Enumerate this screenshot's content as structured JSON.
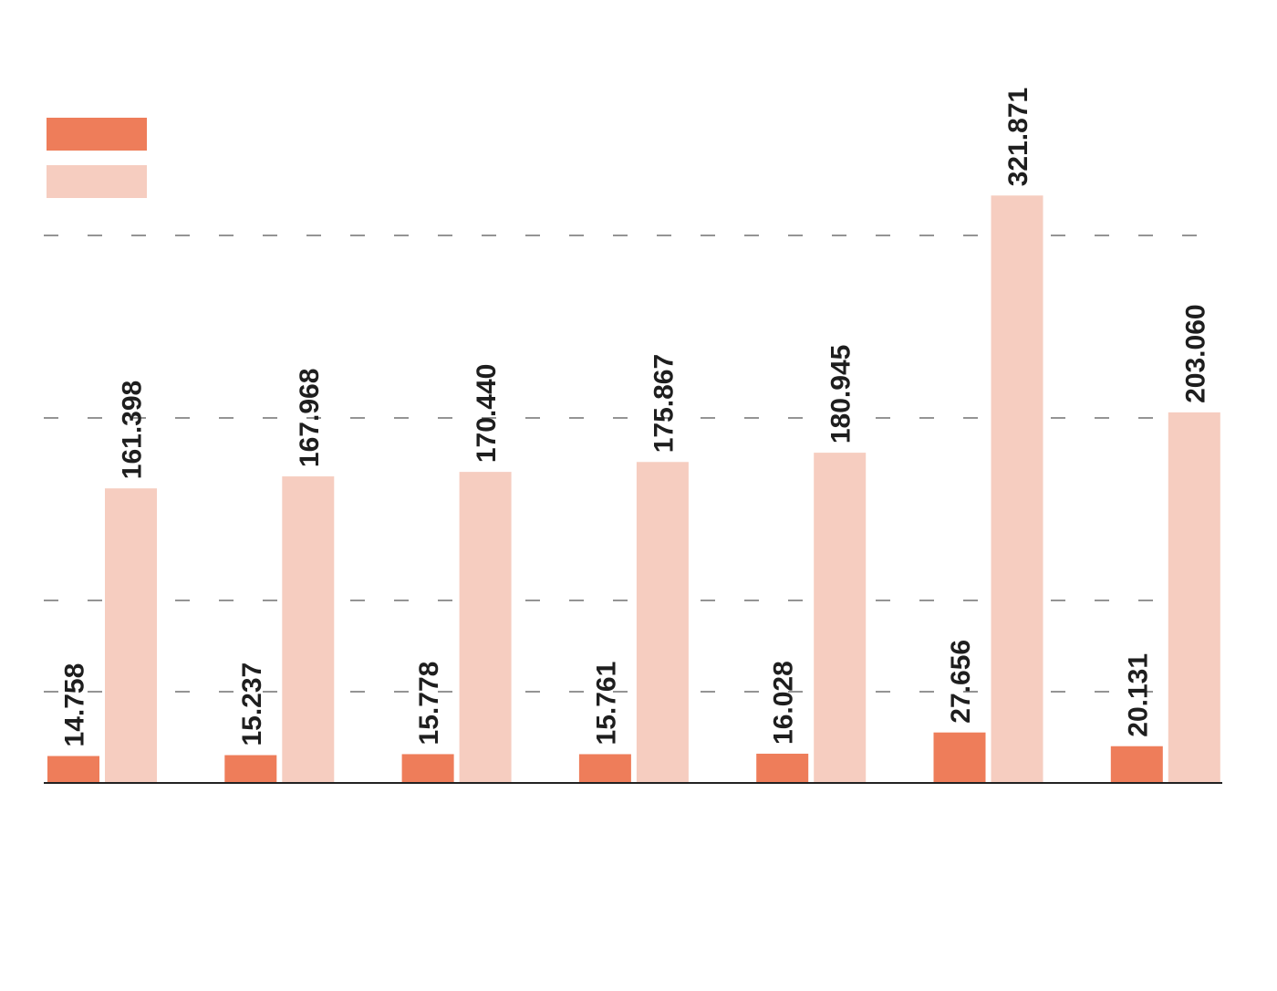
{
  "colors": {
    "series_primary": "#ee7d5a",
    "series_secondary": "#f6cdc0",
    "gridline": "#555555",
    "axis": "#222222",
    "label_text": "#1e1e1e"
  },
  "legend": {
    "placement": "top-left",
    "items": [
      {
        "name": "",
        "color": "#ee7d5a"
      },
      {
        "name": "",
        "color": "#f6cdc0"
      }
    ]
  },
  "chart_data": {
    "type": "bar",
    "categories": [
      "",
      "",
      "",
      "",
      "",
      "",
      ""
    ],
    "series": [
      {
        "color": "#ee7d5a",
        "values": [
          14.758,
          15.237,
          15.778,
          15.761,
          16.028,
          27.656,
          20.131
        ],
        "labels": [
          "14.758",
          "15.237",
          "15.778",
          "15.761",
          "16.028",
          "27.656",
          "20.131"
        ]
      },
      {
        "color": "#f6cdc0",
        "values": [
          161.398,
          167.968,
          170.44,
          175.867,
          180.945,
          321.871,
          203.06
        ],
        "labels": [
          "161.398",
          "167.968",
          "170.440",
          "175.867",
          "180.945",
          "321.871",
          "203.060"
        ]
      }
    ],
    "ylim": [
      0,
      350
    ],
    "gridlines_at": [
      50,
      100,
      200,
      300
    ],
    "grid": true,
    "title": "",
    "xlabel": "",
    "ylabel": ""
  }
}
